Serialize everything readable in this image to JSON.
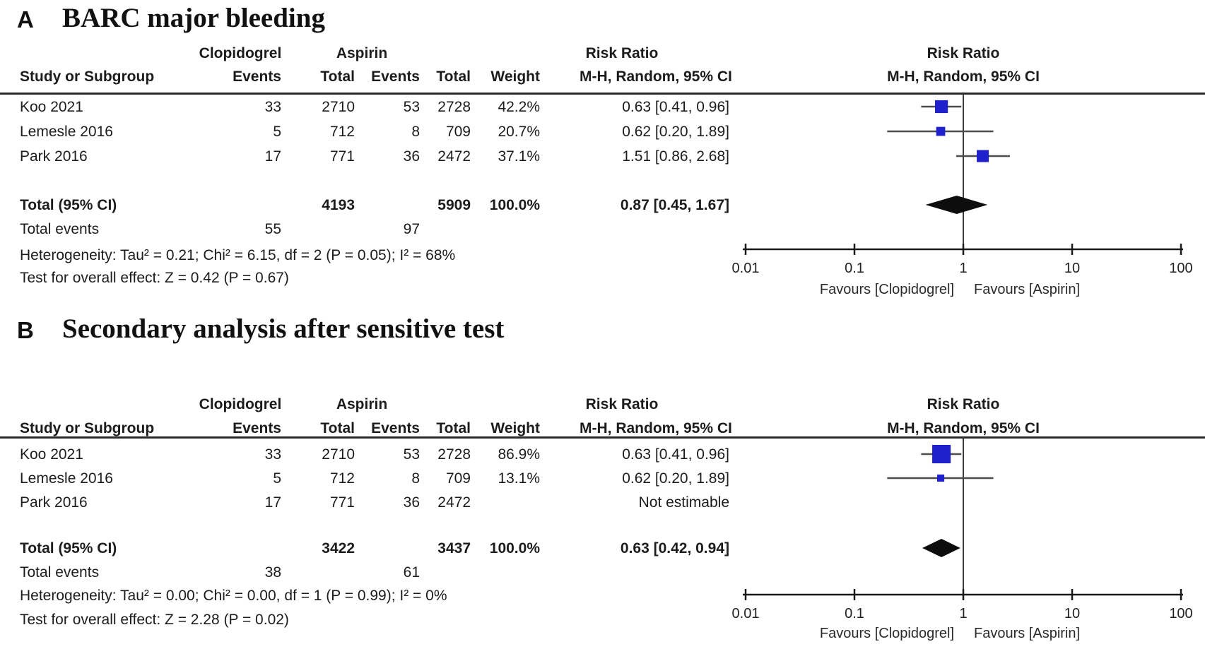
{
  "panels": [
    {
      "letter": "A",
      "title": "BARC major bleeding",
      "table": {
        "group_headers": {
          "treatment": "Clopidogrel",
          "control": "Aspirin",
          "effect": "Risk Ratio",
          "plot": "Risk Ratio"
        },
        "col_headers": {
          "study": "Study or Subgroup",
          "events1": "Events",
          "total1": "Total",
          "events2": "Events",
          "total2": "Total",
          "weight": "Weight",
          "ci": "M-H, Random, 95% CI",
          "plot_ci": "M-H, Random, 95% CI"
        },
        "rows": [
          {
            "study": "Koo 2021",
            "e1": "33",
            "t1": "2710",
            "e2": "53",
            "t2": "2728",
            "weight": "42.2%",
            "ci": "0.63 [0.41, 0.96]"
          },
          {
            "study": "Lemesle 2016",
            "e1": "5",
            "t1": "712",
            "e2": "8",
            "t2": "709",
            "weight": "20.7%",
            "ci": "0.62 [0.20, 1.89]"
          },
          {
            "study": "Park 2016",
            "e1": "17",
            "t1": "771",
            "e2": "36",
            "t2": "2472",
            "weight": "37.1%",
            "ci": "1.51 [0.86, 2.68]"
          }
        ],
        "total_row": {
          "label": "Total (95% CI)",
          "t1": "4193",
          "t2": "5909",
          "weight": "100.0%",
          "ci": "0.87 [0.45, 1.67]"
        },
        "events_row": {
          "label": "Total events",
          "e1": "55",
          "e2": "97"
        },
        "heterogeneity": "Heterogeneity: Tau² = 0.21; Chi² = 6.15, df = 2 (P = 0.05); I² = 68%",
        "overall_effect": "Test for overall effect: Z = 0.42 (P = 0.67)"
      }
    },
    {
      "letter": "B",
      "title": "Secondary analysis after sensitive test",
      "table": {
        "group_headers": {
          "treatment": "Clopidogrel",
          "control": "Aspirin",
          "effect": "Risk Ratio",
          "plot": "Risk Ratio"
        },
        "col_headers": {
          "study": "Study or Subgroup",
          "events1": "Events",
          "total1": "Total",
          "events2": "Events",
          "total2": "Total",
          "weight": "Weight",
          "ci": "M-H, Random, 95% CI",
          "plot_ci": "M-H, Random, 95% CI"
        },
        "rows": [
          {
            "study": "Koo 2021",
            "e1": "33",
            "t1": "2710",
            "e2": "53",
            "t2": "2728",
            "weight": "86.9%",
            "ci": "0.63 [0.41, 0.96]"
          },
          {
            "study": "Lemesle 2016",
            "e1": "5",
            "t1": "712",
            "e2": "8",
            "t2": "709",
            "weight": "13.1%",
            "ci": "0.62 [0.20, 1.89]"
          },
          {
            "study": "Park 2016",
            "e1": "17",
            "t1": "771",
            "e2": "36",
            "t2": "2472",
            "weight": "",
            "ci": "Not estimable"
          }
        ],
        "total_row": {
          "label": "Total (95% CI)",
          "t1": "3422",
          "t2": "3437",
          "weight": "100.0%",
          "ci": "0.63 [0.42, 0.94]"
        },
        "events_row": {
          "label": "Total events",
          "e1": "38",
          "e2": "61"
        },
        "heterogeneity": "Heterogeneity: Tau² = 0.00; Chi² = 0.00, df = 1 (P = 0.99); I² = 0%",
        "overall_effect": "Test for overall effect: Z = 2.28 (P = 0.02)"
      }
    }
  ],
  "chart_data": [
    {
      "type": "forest",
      "panel": "A",
      "title": "BARC major bleeding",
      "effect_measure": "Risk Ratio, M-H, Random, 95% CI",
      "x_scale": "log",
      "xlim": [
        0.01,
        100
      ],
      "ticks": [
        "0.01",
        "0.1",
        "1",
        "10",
        "100"
      ],
      "favours_left": "Favours [Clopidogrel]",
      "favours_right": "Favours [Aspirin]",
      "studies": [
        {
          "name": "Koo 2021",
          "rr": 0.63,
          "ci_low": 0.41,
          "ci_high": 0.96,
          "weight_pct": 42.2,
          "estimable": true
        },
        {
          "name": "Lemesle 2016",
          "rr": 0.62,
          "ci_low": 0.2,
          "ci_high": 1.89,
          "weight_pct": 20.7,
          "estimable": true
        },
        {
          "name": "Park 2016",
          "rr": 1.51,
          "ci_low": 0.86,
          "ci_high": 2.68,
          "weight_pct": 37.1,
          "estimable": true
        }
      ],
      "total": {
        "rr": 0.87,
        "ci_low": 0.45,
        "ci_high": 1.67
      },
      "marker_color": "#2020CC",
      "diamond_color": "#0d0d0d"
    },
    {
      "type": "forest",
      "panel": "B",
      "title": "Secondary analysis after sensitive test",
      "effect_measure": "Risk Ratio, M-H, Random, 95% CI",
      "x_scale": "log",
      "xlim": [
        0.01,
        100
      ],
      "ticks": [
        "0.01",
        "0.1",
        "1",
        "10",
        "100"
      ],
      "favours_left": "Favours [Clopidogrel]",
      "favours_right": "Favours [Aspirin]",
      "studies": [
        {
          "name": "Koo 2021",
          "rr": 0.63,
          "ci_low": 0.41,
          "ci_high": 0.96,
          "weight_pct": 86.9,
          "estimable": true
        },
        {
          "name": "Lemesle 2016",
          "rr": 0.62,
          "ci_low": 0.2,
          "ci_high": 1.89,
          "weight_pct": 13.1,
          "estimable": true
        },
        {
          "name": "Park 2016",
          "rr": null,
          "ci_low": null,
          "ci_high": null,
          "weight_pct": null,
          "estimable": false
        }
      ],
      "total": {
        "rr": 0.63,
        "ci_low": 0.42,
        "ci_high": 0.94
      },
      "marker_color": "#2020CC",
      "diamond_color": "#0d0d0d"
    }
  ]
}
